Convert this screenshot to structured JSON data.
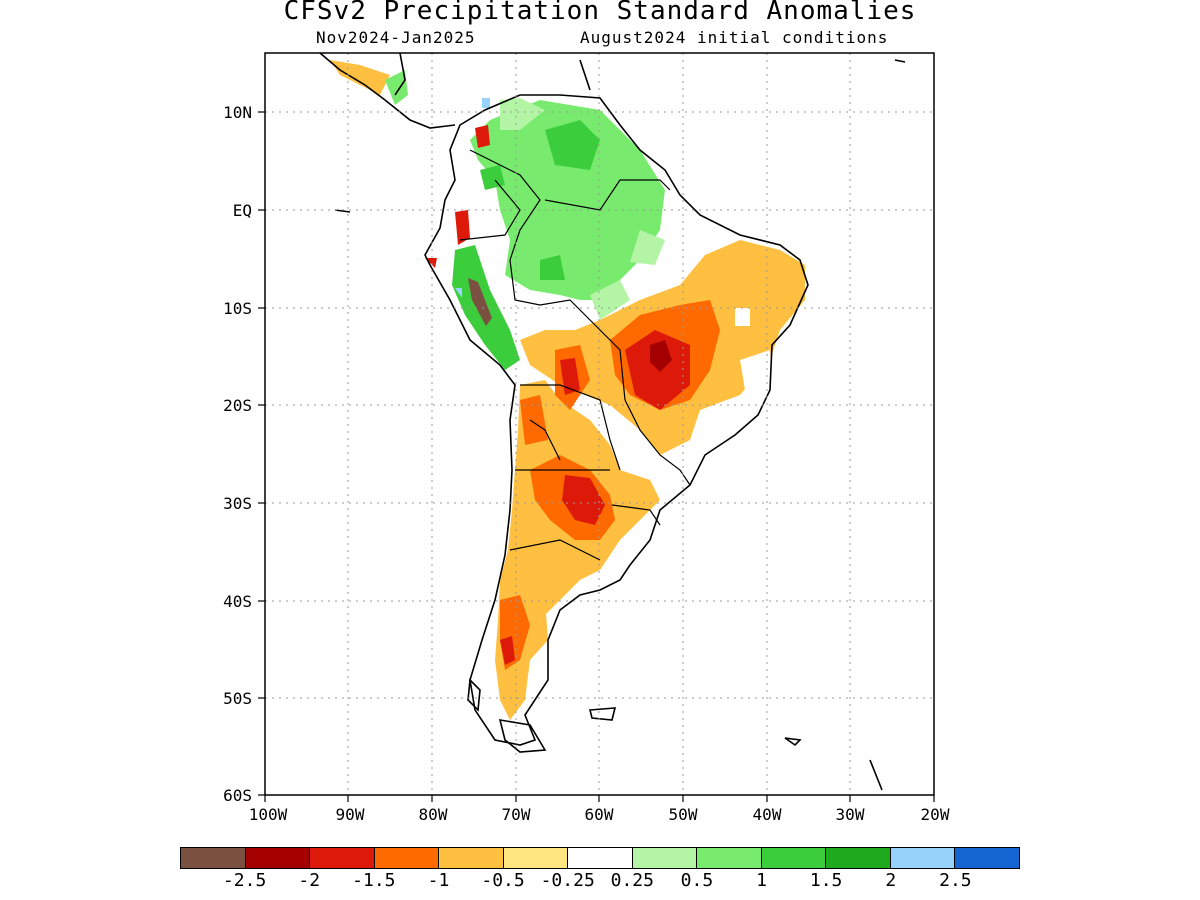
{
  "header": {
    "title": "CFSv2 Precipitation Standard Anomalies",
    "period": "Nov2024-Jan2025",
    "initial_conditions": "August2024 initial conditions"
  },
  "axes": {
    "lat_labels": [
      "10N",
      "EQ",
      "10S",
      "20S",
      "30S",
      "40S",
      "50S",
      "60S"
    ],
    "lon_labels": [
      "100W",
      "90W",
      "80W",
      "70W",
      "60W",
      "50W",
      "40W",
      "30W",
      "20W"
    ],
    "lat_range": [
      -60,
      15.5
    ],
    "lon_range": [
      -100,
      -20
    ],
    "grid": "dotted"
  },
  "legend": {
    "colors": [
      "#7a5040",
      "#a50000",
      "#dd1a0a",
      "#ff6a00",
      "#ffbf40",
      "#ffe680",
      "#ffffff",
      "#b4f5a5",
      "#78eb6e",
      "#3ccd3c",
      "#1eaa1e",
      "#96d2fa",
      "#1464d2"
    ],
    "tick_labels": [
      "-2.5",
      "-2",
      "-1.5",
      "-1",
      "-0.5",
      "-0.25",
      "0.25",
      "0.5",
      "1",
      "1.5",
      "2",
      "2.5"
    ]
  },
  "colors": {
    "coast": "#000000",
    "grid": "#9a9a9a"
  }
}
